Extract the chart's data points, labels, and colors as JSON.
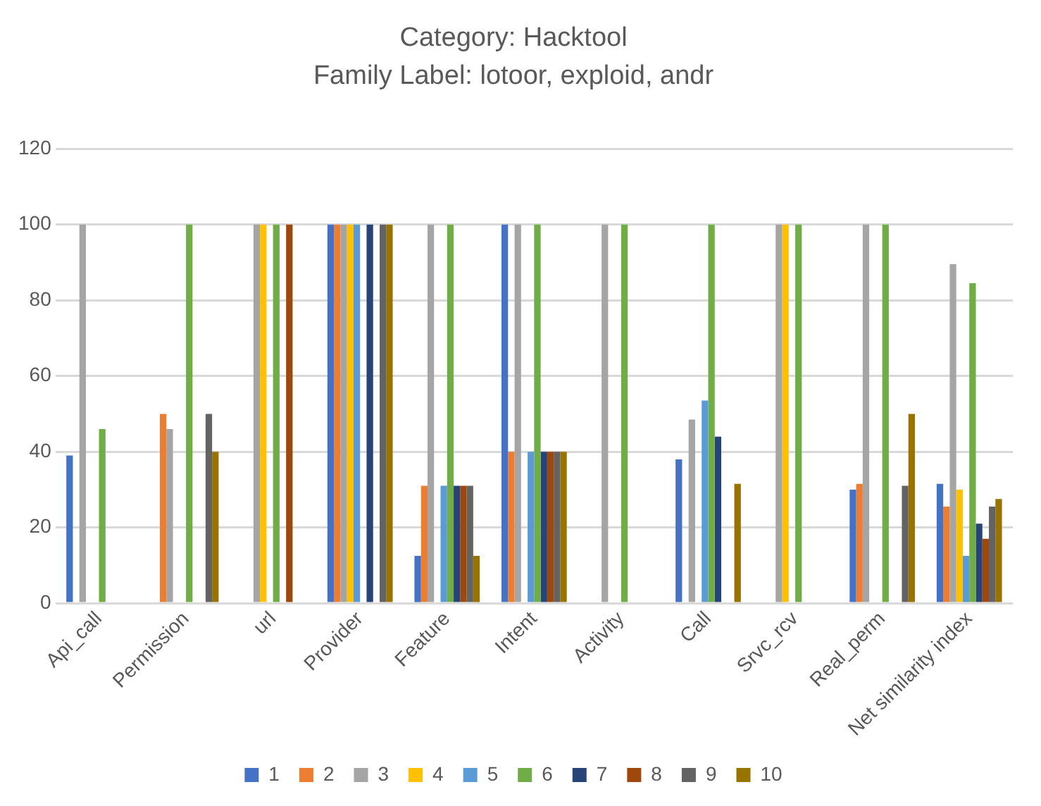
{
  "chart_data": {
    "type": "bar",
    "title": "Category: Hacktool",
    "subtitle": "Family Label: lotoor, exploid, andr",
    "categories": [
      "Api_call",
      "Permission",
      "url",
      "Provider",
      "Feature",
      "Intent",
      "Activity",
      "Call",
      "Srvc_rcv",
      "Real_perm",
      "Net similarity index"
    ],
    "series": [
      {
        "name": "1",
        "color": "#4472c4",
        "values": [
          39,
          0,
          0,
          100,
          12.5,
          100,
          0,
          38,
          0,
          30,
          31.5
        ]
      },
      {
        "name": "2",
        "color": "#ed7d31",
        "values": [
          0,
          50,
          0,
          100,
          31,
          40,
          0,
          0,
          0,
          31.5,
          25.5
        ]
      },
      {
        "name": "3",
        "color": "#a5a5a5",
        "values": [
          100,
          46,
          100,
          100,
          100,
          100,
          100,
          48.5,
          100,
          100,
          89.5
        ]
      },
      {
        "name": "4",
        "color": "#ffc000",
        "values": [
          0,
          0,
          100,
          100,
          0,
          0,
          0,
          0,
          100,
          0,
          30
        ]
      },
      {
        "name": "5",
        "color": "#5b9bd5",
        "values": [
          0,
          0,
          0,
          100,
          31,
          40,
          0,
          53.5,
          0,
          0,
          12.5
        ]
      },
      {
        "name": "6",
        "color": "#70ad47",
        "values": [
          46,
          100,
          100,
          0,
          100,
          100,
          100,
          100,
          100,
          100,
          84.5
        ]
      },
      {
        "name": "7",
        "color": "#264478",
        "values": [
          0,
          0,
          0,
          100,
          31,
          40,
          0,
          44,
          0,
          0,
          21
        ]
      },
      {
        "name": "8",
        "color": "#9e480e",
        "values": [
          0,
          0,
          100,
          0,
          31,
          40,
          0,
          0,
          0,
          0,
          17
        ]
      },
      {
        "name": "9",
        "color": "#636363",
        "values": [
          0,
          50,
          0,
          100,
          31,
          40,
          0,
          0,
          0,
          31,
          25.5
        ]
      },
      {
        "name": "10",
        "color": "#997300",
        "values": [
          0,
          40,
          0,
          100,
          12.5,
          40,
          0,
          31.5,
          0,
          50,
          27.5
        ]
      }
    ],
    "ylim": [
      0,
      120
    ],
    "yticks": [
      0,
      20,
      40,
      60,
      80,
      100,
      120
    ],
    "grid": "y",
    "legend": "bottom"
  }
}
